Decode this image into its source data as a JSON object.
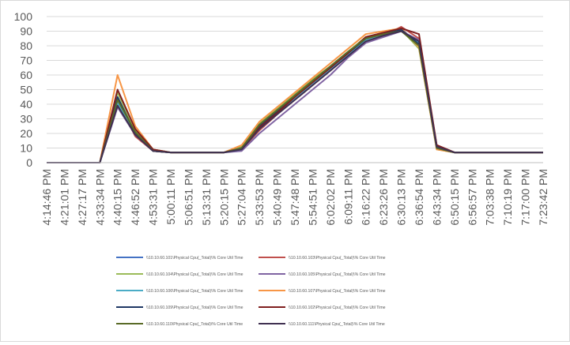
{
  "chart_data": {
    "type": "line",
    "title": "",
    "xlabel": "",
    "ylabel": "",
    "ylim": [
      0,
      100
    ],
    "y_ticks": [
      0,
      10,
      20,
      30,
      40,
      50,
      60,
      70,
      80,
      90,
      100
    ],
    "grid": "horizontal",
    "legend_position": "bottom",
    "x_tick_labels": [
      "4:14:46 PM",
      "4:21:01 PM",
      "4:27:17 PM",
      "4:33:34 PM",
      "4:40:15 PM",
      "4:46:52 PM",
      "4:53:31 PM",
      "5:00:11 PM",
      "5:06:51 PM",
      "5:13:31 PM",
      "5:20:15 PM",
      "5:27:04 PM",
      "5:33:53 PM",
      "5:40:49 PM",
      "5:47:48 PM",
      "5:54:51 PM",
      "6:02:02 PM",
      "6:09:11 PM",
      "6:16:22 PM",
      "6:23:26 PM",
      "6:30:13 PM",
      "6:36:54 PM",
      "6:43:34 PM",
      "6:50:15 PM",
      "6:56:57 PM",
      "7:03:38 PM",
      "7:10:19 PM",
      "7:17:00 PM",
      "7:23:42 PM"
    ],
    "series": [
      {
        "name": "\\\\10.10.60.101\\Physical Cpu(_Total)\\% Core Util Time",
        "color": "#4472c4",
        "values": [
          0,
          0,
          0,
          0,
          40,
          20,
          8,
          7,
          7,
          7,
          7,
          10,
          25,
          35,
          45,
          55,
          65,
          75,
          85,
          88,
          92,
          80,
          10,
          7,
          7,
          7,
          7,
          7,
          7
        ]
      },
      {
        "name": "\\\\10.10.60.103\\Physical Cpu(_Total)\\% Core Util Time",
        "color": "#c0504d",
        "values": [
          0,
          0,
          0,
          0,
          42,
          18,
          8,
          7,
          7,
          7,
          7,
          9,
          22,
          33,
          43,
          53,
          63,
          73,
          84,
          87,
          93,
          85,
          12,
          7,
          7,
          7,
          7,
          7,
          7
        ]
      },
      {
        "name": "\\\\10.10.60.104\\Physical Cpu(_Total)\\% Core Util Time",
        "color": "#9bbb59",
        "values": [
          0,
          0,
          0,
          0,
          48,
          22,
          9,
          7,
          7,
          7,
          7,
          11,
          27,
          37,
          47,
          57,
          66,
          76,
          86,
          89,
          91,
          78,
          9,
          7,
          7,
          7,
          7,
          7,
          7
        ]
      },
      {
        "name": "\\\\10.10.60.105\\Physical Cpu(_Total)\\% Core Util Time",
        "color": "#8064a2",
        "values": [
          0,
          0,
          0,
          0,
          38,
          19,
          8,
          7,
          7,
          7,
          7,
          8,
          20,
          30,
          40,
          50,
          60,
          72,
          82,
          86,
          90,
          84,
          11,
          7,
          7,
          7,
          7,
          7,
          7
        ]
      },
      {
        "name": "\\\\10.10.60.106\\Physical Cpu(_Total)\\% Core Util Time",
        "color": "#4bacc6",
        "values": [
          0,
          0,
          0,
          0,
          41,
          21,
          8,
          7,
          7,
          7,
          7,
          9,
          24,
          34,
          44,
          54,
          64,
          74,
          84,
          88,
          90,
          82,
          10,
          7,
          7,
          7,
          7,
          7,
          7
        ]
      },
      {
        "name": "\\\\10.10.60.107\\Physical Cpu(_Total)\\% Core Util Time",
        "color": "#f79646",
        "values": [
          0,
          0,
          0,
          0,
          60,
          25,
          9,
          7,
          7,
          7,
          7,
          12,
          28,
          38,
          48,
          58,
          68,
          78,
          88,
          90,
          92,
          79,
          9,
          7,
          7,
          7,
          7,
          7,
          7
        ]
      },
      {
        "name": "\\\\10.10.60.109\\Physical Cpu(_Total)\\% Core Util Time",
        "color": "#1f3864",
        "values": [
          0,
          0,
          0,
          0,
          45,
          20,
          8,
          7,
          7,
          7,
          7,
          10,
          25,
          35,
          46,
          56,
          65,
          75,
          85,
          88,
          91,
          81,
          10,
          7,
          7,
          7,
          7,
          7,
          7
        ]
      },
      {
        "name": "\\\\10.10.60.102\\Physical Cpu(_Total)\\% Core Util Time",
        "color": "#7f1f1f",
        "values": [
          0,
          0,
          0,
          0,
          50,
          23,
          9,
          7,
          7,
          7,
          7,
          10,
          24,
          34,
          45,
          55,
          65,
          75,
          86,
          89,
          92,
          88,
          12,
          7,
          7,
          7,
          7,
          7,
          7
        ]
      },
      {
        "name": "\\\\10.10.60.110\\Physical Cpu(_Total)\\% Core Util Time",
        "color": "#5a6b27",
        "values": [
          0,
          0,
          0,
          0,
          43,
          21,
          8,
          7,
          7,
          7,
          7,
          10,
          26,
          36,
          46,
          56,
          66,
          76,
          85,
          88,
          90,
          80,
          10,
          7,
          7,
          7,
          7,
          7,
          7
        ]
      },
      {
        "name": "\\\\10.10.60.111\\Physical Cpu(_Total)\\% Core Util Time",
        "color": "#403151",
        "values": [
          0,
          0,
          0,
          0,
          39,
          19,
          8,
          7,
          7,
          7,
          7,
          9,
          23,
          33,
          43,
          53,
          63,
          73,
          83,
          87,
          90,
          83,
          11,
          7,
          7,
          7,
          7,
          7,
          7
        ]
      }
    ]
  }
}
